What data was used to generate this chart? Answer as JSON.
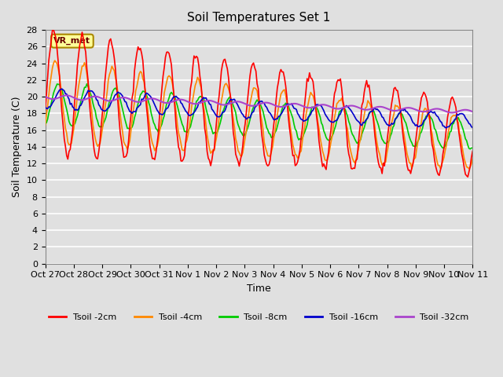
{
  "title": "Soil Temperatures Set 1",
  "xlabel": "Time",
  "ylabel": "Soil Temperature (C)",
  "x_tick_labels": [
    "Oct 27",
    "Oct 28",
    "Oct 29",
    "Oct 30",
    "Oct 31",
    "Nov 1",
    "Nov 2",
    "Nov 3",
    "Nov 4",
    "Nov 5",
    "Nov 6",
    "Nov 7",
    "Nov 8",
    "Nov 9",
    "Nov 10",
    "Nov 11"
  ],
  "ylim": [
    0,
    28
  ],
  "yticks": [
    0,
    2,
    4,
    6,
    8,
    10,
    12,
    14,
    16,
    18,
    20,
    22,
    24,
    26,
    28
  ],
  "background_color": "#e0e0e0",
  "plot_bg_color": "#e0e0e0",
  "grid_color": "#ffffff",
  "line_colors": {
    "tsoil_2cm": "#ff0000",
    "tsoil_4cm": "#ff8800",
    "tsoil_8cm": "#00cc00",
    "tsoil_16cm": "#0000cc",
    "tsoil_32cm": "#aa44cc"
  },
  "legend_labels": [
    "Tsoil -2cm",
    "Tsoil -4cm",
    "Tsoil -8cm",
    "Tsoil -16cm",
    "Tsoil -32cm"
  ],
  "annotation_text": "VR_met",
  "annotation_box_color": "#ffff99",
  "annotation_box_edge": "#aa8800",
  "num_days": 15,
  "pts_per_day": 24
}
